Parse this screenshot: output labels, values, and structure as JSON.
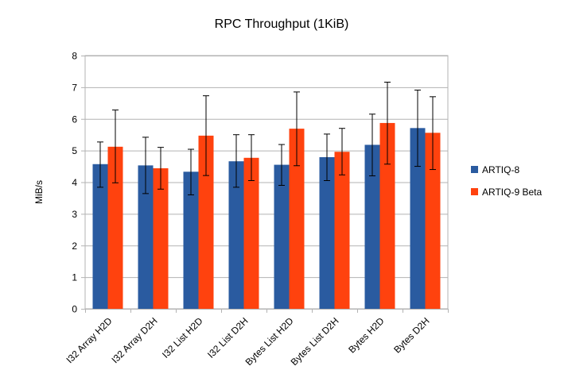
{
  "chart_data": {
    "type": "bar",
    "title": "RPC Throughput (1KiB)",
    "xlabel": "",
    "ylabel": "MiB/s",
    "ylim": [
      0,
      8
    ],
    "yticks": [
      0,
      1,
      2,
      3,
      4,
      5,
      6,
      7,
      8
    ],
    "grid": true,
    "legend_position": "right",
    "categories": [
      "I32 Array H2D",
      "I32 Array D2H",
      "I32 List H2D",
      "I32 List D2H",
      "Bytes List H2D",
      "Bytes List D2H",
      "Bytes H2D",
      "Bytes D2H"
    ],
    "series": [
      {
        "name": "ARTIQ-8",
        "color": "#2a5ba0",
        "values": [
          4.57,
          4.53,
          4.33,
          4.66,
          4.55,
          4.79,
          5.18,
          5.71
        ],
        "err_low": [
          3.84,
          3.64,
          3.6,
          3.84,
          3.9,
          4.05,
          4.2,
          4.5
        ],
        "err_high": [
          5.27,
          5.42,
          5.04,
          5.5,
          5.19,
          5.52,
          6.15,
          6.91
        ]
      },
      {
        "name": "ARTIQ-9 Beta",
        "color": "#ff420e",
        "values": [
          5.12,
          4.44,
          5.47,
          4.77,
          5.69,
          4.96,
          5.87,
          5.56
        ],
        "err_low": [
          3.98,
          3.78,
          4.21,
          4.05,
          4.52,
          4.23,
          4.57,
          4.4
        ],
        "err_high": [
          6.28,
          5.1,
          6.73,
          5.5,
          6.85,
          5.7,
          7.16,
          6.7
        ]
      }
    ]
  }
}
